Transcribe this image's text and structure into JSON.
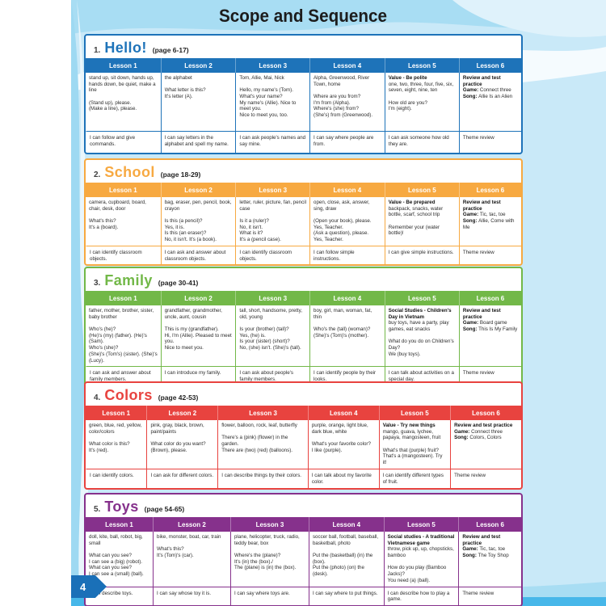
{
  "page": {
    "title": "Scope and Sequence",
    "page_number": "4",
    "colors": {
      "background": "#c9e9f8",
      "bottom_bar": "#47b7e9",
      "page_tab": "#1a70b8",
      "title_text": "#1c1c1c"
    }
  },
  "units": [
    {
      "number": "1.",
      "name": "Hello!",
      "pages": "(page 6-17)",
      "color": "#1e73b9",
      "lesson_headers": [
        "Lesson 1",
        "Lesson 2",
        "Lesson 3",
        "Lesson 4",
        "Lesson 5",
        "Lesson 6"
      ],
      "content": [
        [
          {
            "b": false,
            "t": "stand up, sit down, hands up, hands down, be quiet, make a line\n\n(Stand up), please.\n(Make a line), please."
          }
        ],
        [
          {
            "b": false,
            "t": "the alphabet\n\nWhat letter is this?\nIt's letter (A)."
          }
        ],
        [
          {
            "b": false,
            "t": "Tom, Allie, Mai, Nick\n\nHello, my name's (Tom). What's your name?\nMy name's (Allie). Nice to meet you.\nNice to meet you, too."
          }
        ],
        [
          {
            "b": false,
            "t": "Alpha, Greenwood, River Town, home\n\nWhere are you from?\nI'm from (Alpha).\nWhere's (she) from?\n(She's) from (Greenwood)."
          }
        ],
        [
          {
            "b": true,
            "t": "Value - Be polite\n"
          },
          {
            "b": false,
            "t": "one, two, three, four, five, six, seven, eight, nine, ten\n\nHow old are you?\nI'm (eight)."
          }
        ],
        [
          {
            "b": true,
            "t": "Review and test practice\n"
          },
          {
            "b": true,
            "t": "Game: "
          },
          {
            "b": false,
            "t": "Connect three\n"
          },
          {
            "b": true,
            "t": "Song: "
          },
          {
            "b": false,
            "t": "Allie Is an Alien"
          }
        ]
      ],
      "i_can": [
        "I can follow and give commands.",
        "I can say letters in the alphabet and spell my name.",
        "I can ask people's names and say mine.",
        "I can say where people are from.",
        "I can ask someone how old they are.",
        "Theme review"
      ]
    },
    {
      "number": "2.",
      "name": "School",
      "pages": "(page 18-29)",
      "color": "#f7a941",
      "lesson_headers": [
        "Lesson 1",
        "Lesson 2",
        "Lesson 3",
        "Lesson 4",
        "Lesson 5",
        "Lesson 6"
      ],
      "content": [
        [
          {
            "b": false,
            "t": "camera, cupboard, board, chair, desk, door\n\nWhat's this?\nIt's a (board)."
          }
        ],
        [
          {
            "b": false,
            "t": "bag, eraser, pen, pencil, book, crayon\n\nIs this (a pencil)?\nYes, it is.\nIs this (an eraser)?\nNo, it isn't. It's (a book)."
          }
        ],
        [
          {
            "b": false,
            "t": "letter, ruler, picture, fan, pencil case\n\nIs it a (ruler)?\nNo, it isn't.\nWhat is it?\nIt's a (pencil case)."
          }
        ],
        [
          {
            "b": false,
            "t": "open, close, ask, answer, sing, draw\n\n(Open your book), please.\nYes, Teacher.\n(Ask a question), please.\nYes, Teacher."
          }
        ],
        [
          {
            "b": true,
            "t": "Value - Be prepared\n"
          },
          {
            "b": false,
            "t": "backpack, snacks, water bottle, scarf, school trip\n\nRemember your (water bottle)!"
          }
        ],
        [
          {
            "b": true,
            "t": "Review and test practice\n"
          },
          {
            "b": true,
            "t": "Game: "
          },
          {
            "b": false,
            "t": "Tic, tac, toe\n"
          },
          {
            "b": true,
            "t": "Song: "
          },
          {
            "b": false,
            "t": "Allie, Come with Me"
          }
        ]
      ],
      "i_can": [
        "I can identify classroom objects.",
        "I can ask and answer about classroom objects.",
        "I can identify classroom objects.",
        "I can follow simple instructions.",
        "I can give simple instructions.",
        "Theme review"
      ]
    },
    {
      "number": "3.",
      "name": "Family",
      "pages": "(page 30-41)",
      "color": "#72b848",
      "lesson_headers": [
        "Lesson 1",
        "Lesson 2",
        "Lesson 3",
        "Lesson 4",
        "Lesson 5",
        "Lesson 6"
      ],
      "content": [
        [
          {
            "b": false,
            "t": "father, mother, brother, sister, baby brother\n\nWho's (he)?\n(He)'s (my) (father). (He)'s (Sam).\nWho's (she)?\n(She)'s (Tom's) (sister). (She)'s (Lucy)."
          }
        ],
        [
          {
            "b": false,
            "t": "grandfather, grandmother, uncle, aunt, cousin\n\nThis is my (grandfather).\nHi, I'm (Allie). Pleased to meet you.\nNice to meet you."
          }
        ],
        [
          {
            "b": false,
            "t": "tall, short, handsome, pretty, old, young\n\nIs your (brother) (tall)?\nYes, (he) is.\nIs your (sister) (short)?\nNo, (she) isn't. (She)'s (tall)."
          }
        ],
        [
          {
            "b": false,
            "t": "boy, girl, man, woman, fat, thin\n\nWho's the (tall) (woman)?\n(She)'s (Tom)'s (mother)."
          }
        ],
        [
          {
            "b": true,
            "t": "Social Studies - Children's Day in Vietnam\n"
          },
          {
            "b": false,
            "t": "buy toys, have a party, play games, eat snacks\n\nWhat do you do on Children's Day?\nWe (buy toys)."
          }
        ],
        [
          {
            "b": true,
            "t": "Review and test practice\n"
          },
          {
            "b": true,
            "t": "Game: "
          },
          {
            "b": false,
            "t": "Board game\n"
          },
          {
            "b": true,
            "t": "Song: "
          },
          {
            "b": false,
            "t": "This Is My Family"
          }
        ]
      ],
      "i_can": [
        "I can ask and answer about family members.",
        "I can introduce my family.",
        "I can ask about people's family members.",
        "I can identify people by their looks.",
        "I can talk about activities on a special day.",
        "Theme review"
      ]
    },
    {
      "number": "4.",
      "name": "Colors",
      "pages": "(page 42-53)",
      "color": "#e8433f",
      "lesson_headers": [
        "Lesson 1",
        "Lesson 2",
        "Lesson 3",
        "Lesson 4",
        "Lesson 5",
        "Lesson 6"
      ],
      "content": [
        [
          {
            "b": false,
            "t": "green, blue, red, yellow, color/colors\n\nWhat color is this?\nIt's (red)."
          }
        ],
        [
          {
            "b": false,
            "t": "pink, gray, black, brown, paint/paints\n\nWhat color do you want?\n(Brown), please."
          }
        ],
        [
          {
            "b": false,
            "t": "flower, balloon, rock, leaf, butterfly\n\nThere's a (pink) (flower) in the garden.\nThere are (two) (red) (balloons)."
          }
        ],
        [
          {
            "b": false,
            "t": "purple, orange, light blue, dark blue, white\n\nWhat's your favorite color?\nI like (purple)."
          }
        ],
        [
          {
            "b": true,
            "t": "Value - Try new things\n"
          },
          {
            "b": false,
            "t": "mango, guava, lychee, papaya, mangosteen, fruit\n\nWhat's that (purple) fruit?\nThat's a (mangosteen). Try it!"
          }
        ],
        [
          {
            "b": true,
            "t": "Review and test practice\n"
          },
          {
            "b": true,
            "t": "Game: "
          },
          {
            "b": false,
            "t": "Connect three\n"
          },
          {
            "b": true,
            "t": "Song: "
          },
          {
            "b": false,
            "t": "Colors, Colors"
          }
        ]
      ],
      "i_can": [
        "I can identify colors.",
        "I can ask for different colors.",
        "I can describe things by their colors.",
        "I can talk about my favorite color.",
        "I can identify different types of fruit.",
        "Theme review"
      ]
    },
    {
      "number": "5.",
      "name": "Toys",
      "pages": "(page 54-65)",
      "color": "#86318c",
      "lesson_headers": [
        "Lesson 1",
        "Lesson 2",
        "Lesson 3",
        "Lesson 4",
        "Lesson 5",
        "Lesson 6"
      ],
      "content": [
        [
          {
            "b": false,
            "t": "doll, kite, ball, robot, big, small\n\nWhat can you see?\nI can see a (big) (robot).\nWhat can you see?\nI can see a (small) (ball)."
          }
        ],
        [
          {
            "b": false,
            "t": "bike, monster, boat, car, train\n\nWhat's this?\nIt's (Tom)'s (car)."
          }
        ],
        [
          {
            "b": false,
            "t": "plane, helicopter, truck, radio, teddy bear, box\n\nWhere's the (plane)?\nIt's (in) the (box)./\nThe (plane) is (in) the (box)."
          }
        ],
        [
          {
            "b": false,
            "t": "soccer ball, football, baseball, basketball, photo\n\nPut the (basketball) (in) the (box).\nPut the (photo) (on) the (desk)."
          }
        ],
        [
          {
            "b": true,
            "t": "Social studies - A traditional Vietnamese game\n"
          },
          {
            "b": false,
            "t": "throw, pick up, up, chopsticks, bamboo\n\nHow do you play (Bamboo Jacks)?\nYou need (a) (ball)."
          }
        ],
        [
          {
            "b": true,
            "t": "Review and test practice\n"
          },
          {
            "b": true,
            "t": "Game: "
          },
          {
            "b": false,
            "t": "Tic, tac, toe\n"
          },
          {
            "b": true,
            "t": "Song: "
          },
          {
            "b": false,
            "t": "The Toy Shop"
          }
        ]
      ],
      "i_can": [
        "I can describe toys.",
        "I can say whose toy it is.",
        "I can say where toys are.",
        "I can say where to put things.",
        "I can describe how to play a game.",
        "Theme review"
      ]
    }
  ]
}
